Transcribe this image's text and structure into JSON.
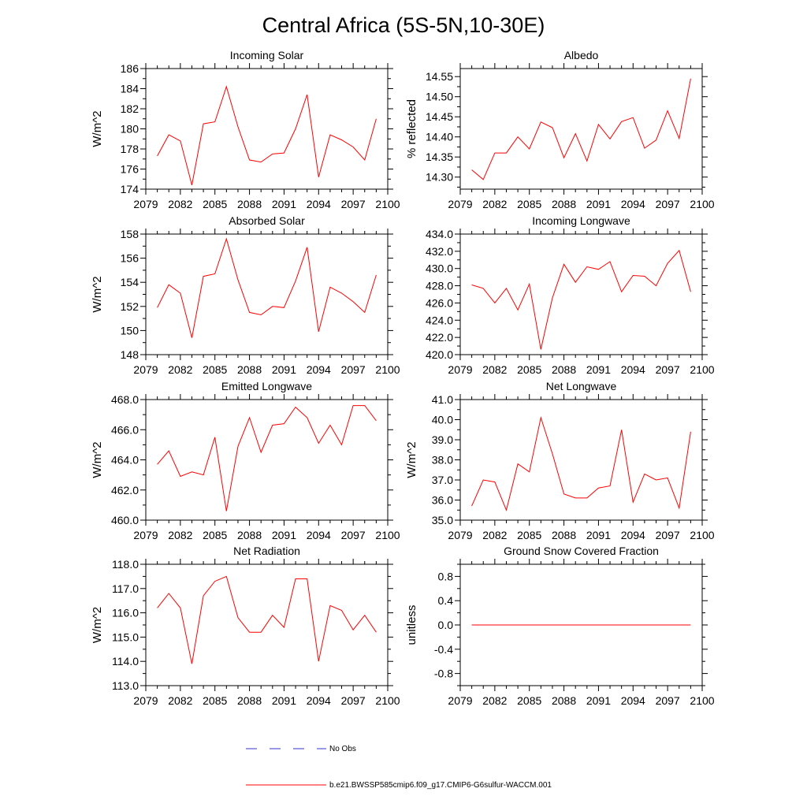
{
  "page_title": "Central Africa (5S-5N,10-30E)",
  "legend": {
    "obs_label": "No Obs",
    "obs_color": "#3333cc",
    "model_label": "b.e21.BWSSP585cmip6.f09_g17.CMIP6-G6sulfur-WACCM.001",
    "model_color": "#ff0000"
  },
  "chart_data": [
    {
      "type": "line",
      "title": "Incoming Solar",
      "ylabel": "W/m^2",
      "xlim": [
        2079,
        2100
      ],
      "ylim": [
        174,
        186
      ],
      "xticks": [
        2079,
        2082,
        2085,
        2088,
        2091,
        2094,
        2097,
        2100
      ],
      "yticks": [
        174,
        176,
        178,
        180,
        182,
        184,
        186
      ],
      "ytick_labels": [
        "174",
        "176",
        "178",
        "180",
        "182",
        "184",
        "186"
      ],
      "x": [
        2080,
        2081,
        2082,
        2083,
        2084,
        2085,
        2086,
        2087,
        2088,
        2089,
        2090,
        2091,
        2092,
        2093,
        2094,
        2095,
        2096,
        2097,
        2098,
        2099
      ],
      "series": [
        {
          "values": [
            177.3,
            179.4,
            178.8,
            174.4,
            180.5,
            180.7,
            184.2,
            180.2,
            176.9,
            176.7,
            177.5,
            177.6,
            180.0,
            183.4,
            175.2,
            179.4,
            178.9,
            178.2,
            176.9,
            181.0
          ],
          "color": "#ff0000"
        }
      ]
    },
    {
      "type": "line",
      "title": "Albedo",
      "ylabel": "% reflected",
      "xlim": [
        2079,
        2100
      ],
      "ylim": [
        14.27,
        14.57
      ],
      "xticks": [
        2079,
        2082,
        2085,
        2088,
        2091,
        2094,
        2097,
        2100
      ],
      "yticks": [
        14.3,
        14.35,
        14.4,
        14.45,
        14.5,
        14.55
      ],
      "ytick_labels": [
        "14.30",
        "14.35",
        "14.40",
        "14.45",
        "14.50",
        "14.55"
      ],
      "x": [
        2080,
        2081,
        2082,
        2083,
        2084,
        2085,
        2086,
        2087,
        2088,
        2089,
        2090,
        2091,
        2092,
        2093,
        2094,
        2095,
        2096,
        2097,
        2098,
        2099
      ],
      "series": [
        {
          "values": [
            14.318,
            14.294,
            14.36,
            14.36,
            14.4,
            14.37,
            14.437,
            14.423,
            14.348,
            14.408,
            14.34,
            14.431,
            14.395,
            14.438,
            14.448,
            14.372,
            14.392,
            14.465,
            14.396,
            14.545
          ],
          "color": "#ff0000"
        }
      ]
    },
    {
      "type": "line",
      "title": "Absorbed Solar",
      "ylabel": "W/m^2",
      "xlim": [
        2079,
        2100
      ],
      "ylim": [
        148,
        158
      ],
      "xticks": [
        2079,
        2082,
        2085,
        2088,
        2091,
        2094,
        2097,
        2100
      ],
      "yticks": [
        148,
        150,
        152,
        154,
        156,
        158
      ],
      "ytick_labels": [
        "148",
        "150",
        "152",
        "154",
        "156",
        "158"
      ],
      "x": [
        2080,
        2081,
        2082,
        2083,
        2084,
        2085,
        2086,
        2087,
        2088,
        2089,
        2090,
        2091,
        2092,
        2093,
        2094,
        2095,
        2096,
        2097,
        2098,
        2099
      ],
      "series": [
        {
          "values": [
            151.9,
            153.8,
            153.1,
            149.4,
            154.5,
            154.7,
            157.6,
            154.2,
            151.5,
            151.3,
            152.0,
            151.9,
            154.1,
            156.9,
            149.9,
            153.6,
            153.1,
            152.4,
            151.5,
            154.6
          ],
          "color": "#ff0000"
        }
      ]
    },
    {
      "type": "line",
      "title": "Incoming Longwave",
      "ylabel": "",
      "xlim": [
        2079,
        2100
      ],
      "ylim": [
        420,
        434
      ],
      "xticks": [
        2079,
        2082,
        2085,
        2088,
        2091,
        2094,
        2097,
        2100
      ],
      "yticks": [
        420,
        422,
        424,
        426,
        428,
        430,
        432,
        434
      ],
      "ytick_labels": [
        "420.0",
        "422.0",
        "424.0",
        "426.0",
        "428.0",
        "430.0",
        "432.0",
        "434.0"
      ],
      "x": [
        2080,
        2081,
        2082,
        2083,
        2084,
        2085,
        2086,
        2087,
        2088,
        2089,
        2090,
        2091,
        2092,
        2093,
        2094,
        2095,
        2096,
        2097,
        2098,
        2099
      ],
      "series": [
        {
          "values": [
            428.1,
            427.7,
            426.0,
            427.7,
            425.2,
            428.2,
            420.6,
            426.6,
            430.5,
            428.4,
            430.2,
            429.9,
            430.8,
            427.3,
            429.2,
            429.1,
            428.0,
            430.6,
            432.1,
            427.3
          ],
          "color": "#ff0000"
        }
      ]
    },
    {
      "type": "line",
      "title": "Emitted Longwave",
      "ylabel": "W/m^2",
      "xlim": [
        2079,
        2100
      ],
      "ylim": [
        460,
        468
      ],
      "xticks": [
        2079,
        2082,
        2085,
        2088,
        2091,
        2094,
        2097,
        2100
      ],
      "yticks": [
        460,
        462,
        464,
        466,
        468
      ],
      "ytick_labels": [
        "460.0",
        "462.0",
        "464.0",
        "466.0",
        "468.0"
      ],
      "x": [
        2080,
        2081,
        2082,
        2083,
        2084,
        2085,
        2086,
        2087,
        2088,
        2089,
        2090,
        2091,
        2092,
        2093,
        2094,
        2095,
        2096,
        2097,
        2098,
        2099
      ],
      "series": [
        {
          "values": [
            463.7,
            464.6,
            462.9,
            463.2,
            463.0,
            465.5,
            460.6,
            464.9,
            466.8,
            464.5,
            466.3,
            466.4,
            467.5,
            466.8,
            465.1,
            466.3,
            465.0,
            467.6,
            467.6,
            466.6
          ],
          "color": "#ff0000"
        }
      ]
    },
    {
      "type": "line",
      "title": "Net Longwave",
      "ylabel": "W/m^2",
      "xlim": [
        2079,
        2100
      ],
      "ylim": [
        35,
        41
      ],
      "xticks": [
        2079,
        2082,
        2085,
        2088,
        2091,
        2094,
        2097,
        2100
      ],
      "yticks": [
        35,
        36,
        37,
        38,
        39,
        40,
        41
      ],
      "ytick_labels": [
        "35.0",
        "36.0",
        "37.0",
        "38.0",
        "39.0",
        "40.0",
        "41.0"
      ],
      "x": [
        2080,
        2081,
        2082,
        2083,
        2084,
        2085,
        2086,
        2087,
        2088,
        2089,
        2090,
        2091,
        2092,
        2093,
        2094,
        2095,
        2096,
        2097,
        2098,
        2099
      ],
      "series": [
        {
          "values": [
            35.7,
            37.0,
            36.9,
            35.5,
            37.8,
            37.4,
            40.1,
            38.3,
            36.3,
            36.1,
            36.1,
            36.6,
            36.7,
            39.5,
            35.9,
            37.3,
            37.0,
            37.1,
            35.6,
            39.4
          ],
          "color": "#ff0000"
        }
      ]
    },
    {
      "type": "line",
      "title": "Net Radiation",
      "ylabel": "W/m^2",
      "xlim": [
        2079,
        2100
      ],
      "ylim": [
        113,
        118
      ],
      "xticks": [
        2079,
        2082,
        2085,
        2088,
        2091,
        2094,
        2097,
        2100
      ],
      "yticks": [
        113,
        114,
        115,
        116,
        117,
        118
      ],
      "ytick_labels": [
        "113.0",
        "114.0",
        "115.0",
        "116.0",
        "117.0",
        "118.0"
      ],
      "x": [
        2080,
        2081,
        2082,
        2083,
        2084,
        2085,
        2086,
        2087,
        2088,
        2089,
        2090,
        2091,
        2092,
        2093,
        2094,
        2095,
        2096,
        2097,
        2098,
        2099
      ],
      "series": [
        {
          "values": [
            116.2,
            116.8,
            116.2,
            113.9,
            116.7,
            117.3,
            117.5,
            115.8,
            115.2,
            115.2,
            115.9,
            115.4,
            117.4,
            117.4,
            114.0,
            116.3,
            116.1,
            115.3,
            115.9,
            115.2
          ],
          "color": "#ff0000"
        }
      ]
    },
    {
      "type": "line",
      "title": "Ground Snow Covered Fraction",
      "ylabel": "unitless",
      "xlim": [
        2079,
        2100
      ],
      "ylim": [
        -1.0,
        1.0
      ],
      "xticks": [
        2079,
        2082,
        2085,
        2088,
        2091,
        2094,
        2097,
        2100
      ],
      "yticks": [
        -0.8,
        -0.4,
        0.0,
        0.4,
        0.8
      ],
      "ytick_labels": [
        "-0.8",
        "-0.4",
        "0.0",
        "0.4",
        "0.8"
      ],
      "x": [
        2080,
        2081,
        2082,
        2083,
        2084,
        2085,
        2086,
        2087,
        2088,
        2089,
        2090,
        2091,
        2092,
        2093,
        2094,
        2095,
        2096,
        2097,
        2098,
        2099
      ],
      "series": [
        {
          "values": [
            0,
            0,
            0,
            0,
            0,
            0,
            0,
            0,
            0,
            0,
            0,
            0,
            0,
            0,
            0,
            0,
            0,
            0,
            0,
            0
          ],
          "color": "#ff0000"
        }
      ]
    }
  ]
}
